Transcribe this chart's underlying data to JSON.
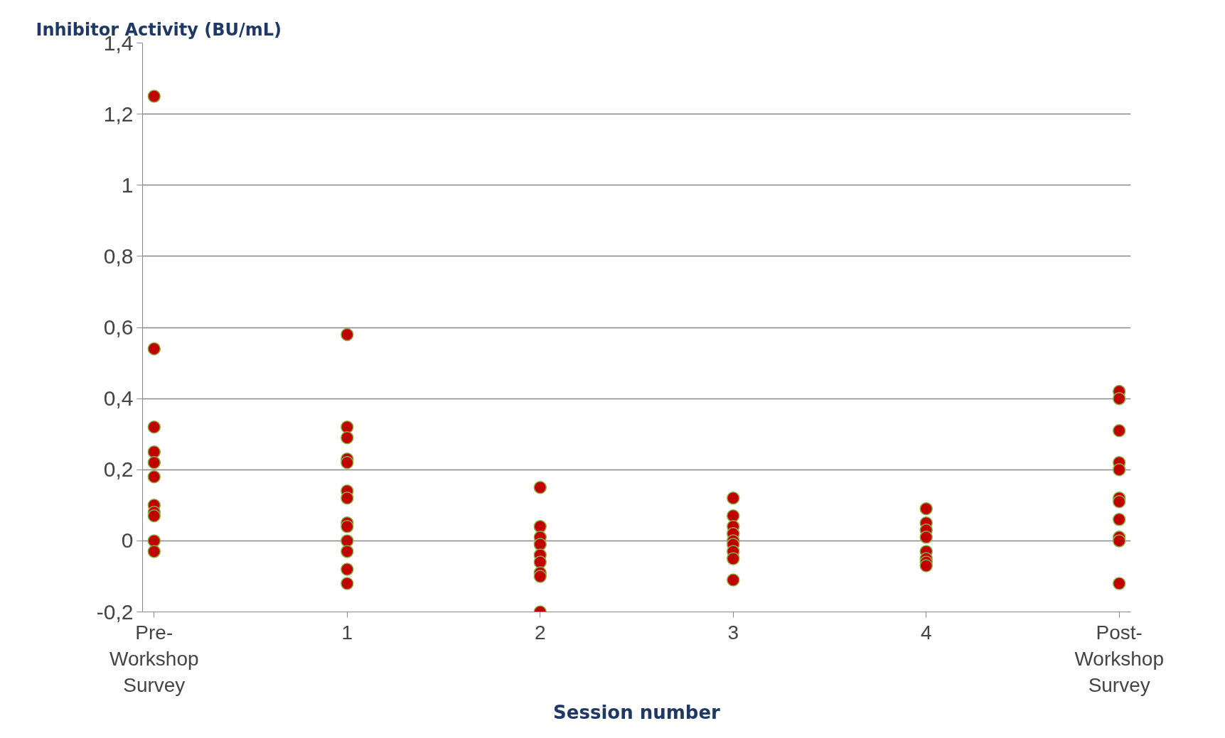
{
  "chart_data": {
    "type": "scatter",
    "ylabel": "Inhibitor Activity (BU/mL)",
    "xlabel": "Session number",
    "categories": [
      "Pre-Workshop Survey",
      "1",
      "2",
      "3",
      "4",
      "Post-Workshop Survey"
    ],
    "series": [
      {
        "color": "#c00000",
        "x": [
          "Pre-Workshop Survey",
          "Pre-Workshop Survey",
          "Pre-Workshop Survey",
          "Pre-Workshop Survey",
          "Pre-Workshop Survey",
          "Pre-Workshop Survey",
          "Pre-Workshop Survey",
          "Pre-Workshop Survey",
          "Pre-Workshop Survey",
          "Pre-Workshop Survey",
          "Pre-Workshop Survey",
          "1",
          "1",
          "1",
          "1",
          "1",
          "1",
          "1",
          "1",
          "1",
          "1",
          "1",
          "1",
          "1",
          "2",
          "2",
          "2",
          "2",
          "2",
          "2",
          "2",
          "2",
          "2",
          "3",
          "3",
          "3",
          "3",
          "3",
          "3",
          "3",
          "3",
          "3",
          "4",
          "4",
          "4",
          "4",
          "4",
          "4",
          "4",
          "4",
          "Post-Workshop Survey",
          "Post-Workshop Survey",
          "Post-Workshop Survey",
          "Post-Workshop Survey",
          "Post-Workshop Survey",
          "Post-Workshop Survey",
          "Post-Workshop Survey",
          "Post-Workshop Survey",
          "Post-Workshop Survey",
          "Post-Workshop Survey",
          "Post-Workshop Survey"
        ],
        "values": [
          1.25,
          0.54,
          0.32,
          0.25,
          0.22,
          0.18,
          0.1,
          0.08,
          0.07,
          0.0,
          -0.03,
          0.58,
          0.32,
          0.29,
          0.23,
          0.22,
          0.14,
          0.12,
          0.05,
          0.04,
          0.0,
          -0.03,
          -0.08,
          -0.12,
          0.15,
          0.04,
          0.01,
          -0.01,
          -0.04,
          -0.06,
          -0.09,
          -0.1,
          -0.2,
          0.12,
          0.07,
          0.04,
          0.02,
          0.0,
          -0.01,
          -0.03,
          -0.05,
          -0.11,
          0.09,
          0.05,
          0.03,
          0.01,
          -0.03,
          -0.05,
          -0.06,
          -0.07,
          0.42,
          0.4,
          0.31,
          0.22,
          0.2,
          0.12,
          0.11,
          0.06,
          0.01,
          0.0,
          -0.12
        ]
      }
    ],
    "ylim": [
      -0.2,
      1.4
    ],
    "yticks": [
      {
        "value": -0.2,
        "label": "-0,2"
      },
      0,
      {
        "value": 0.2,
        "label": "0,2"
      },
      {
        "value": 0.4,
        "label": "0,4"
      },
      {
        "value": 0.6,
        "label": "0,6"
      },
      {
        "value": 0.8,
        "label": "0,8"
      },
      1,
      {
        "value": 1.2,
        "label": "1,2"
      },
      {
        "value": 1.4,
        "label": "1,4"
      }
    ],
    "grid": "y",
    "marker": "circle"
  }
}
